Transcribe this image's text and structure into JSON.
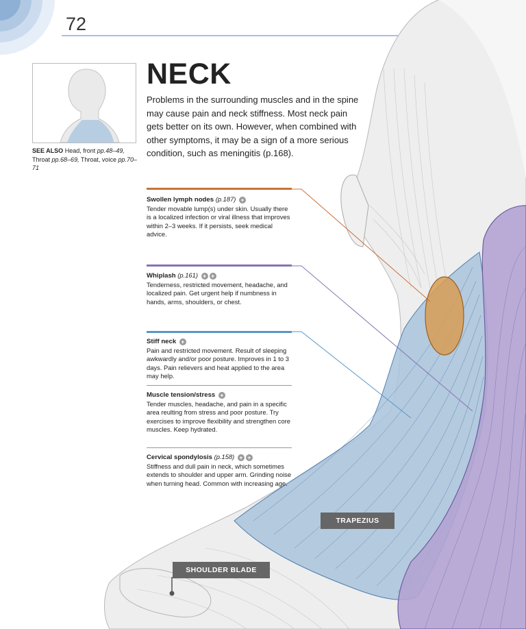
{
  "page": {
    "number": "72",
    "title": "NECK",
    "intro": "Problems in the surrounding muscles and in the spine may cause pain and neck stiffness. Most neck pain gets better on its own. However, when combined with other symptoms, it may be a sign of a more serious condition, such as meningitis (p.168)."
  },
  "see_also": {
    "label": "SEE ALSO",
    "items": [
      {
        "name": "Head, front",
        "pages": "pp.48–49,"
      },
      {
        "name": "Throat",
        "pages": "pp.68–69,"
      },
      {
        "name": "Throat, voice",
        "pages": "pp.70–71"
      }
    ]
  },
  "entries": [
    {
      "title": "Swollen lymph nodes",
      "ref": "(p.187)",
      "icon": "plus-circle-icon",
      "color": "#c8733a",
      "text": "Tender movable lump(s) under skin. Usually there is a localized infection or viral illness that improves within 2–3 weeks. If it persists, seek medical advice."
    },
    {
      "title": "Whiplash",
      "ref": "(p.161)",
      "icon": "plus-circle-icon",
      "color": "#8574b0",
      "text": "Tenderness, restricted movement, headache, and localized pain. Get urgent help if numbness in hands, arms, shoulders, or chest."
    },
    {
      "title": "Stiff neck",
      "ref": "",
      "icon": "plus-circle-icon",
      "color": "#5896c6",
      "text": "Pain and restricted movement. Result of sleeping awkwardly and/or poor posture. Improves in 1 to 3 days. Pain relievers and heat applied to the area may help."
    },
    {
      "title": "Muscle tension/stress",
      "ref": "",
      "icon": "plus-circle-icon",
      "color": "#5896c6",
      "text": "Tender muscles, headache, and pain in a specific area reulting from stress and poor posture. Try exercises to improve flexibility and strengthen core muscles. Keep hydrated."
    },
    {
      "title": "Cervical spondylosis",
      "ref": "(p.158)",
      "icon": "plus-circle-icon",
      "color": "#5896c6",
      "text": "Stiffness and dull pain in neck, which sometimes extends to shoulder and upper arm. Grinding noise when turning head. Common with increasing age."
    }
  ],
  "labels": {
    "trapezius": "TRAPEZIUS",
    "shoulder_blade": "SHOULDER BLADE"
  },
  "colors": {
    "lymph": "#c8733a",
    "whiplash": "#8574b0",
    "stiff": "#5896c6",
    "trapezius_fill": "#a9c3dc",
    "purple_fill": "#b3a3d3",
    "node_fill": "#d89d55"
  }
}
